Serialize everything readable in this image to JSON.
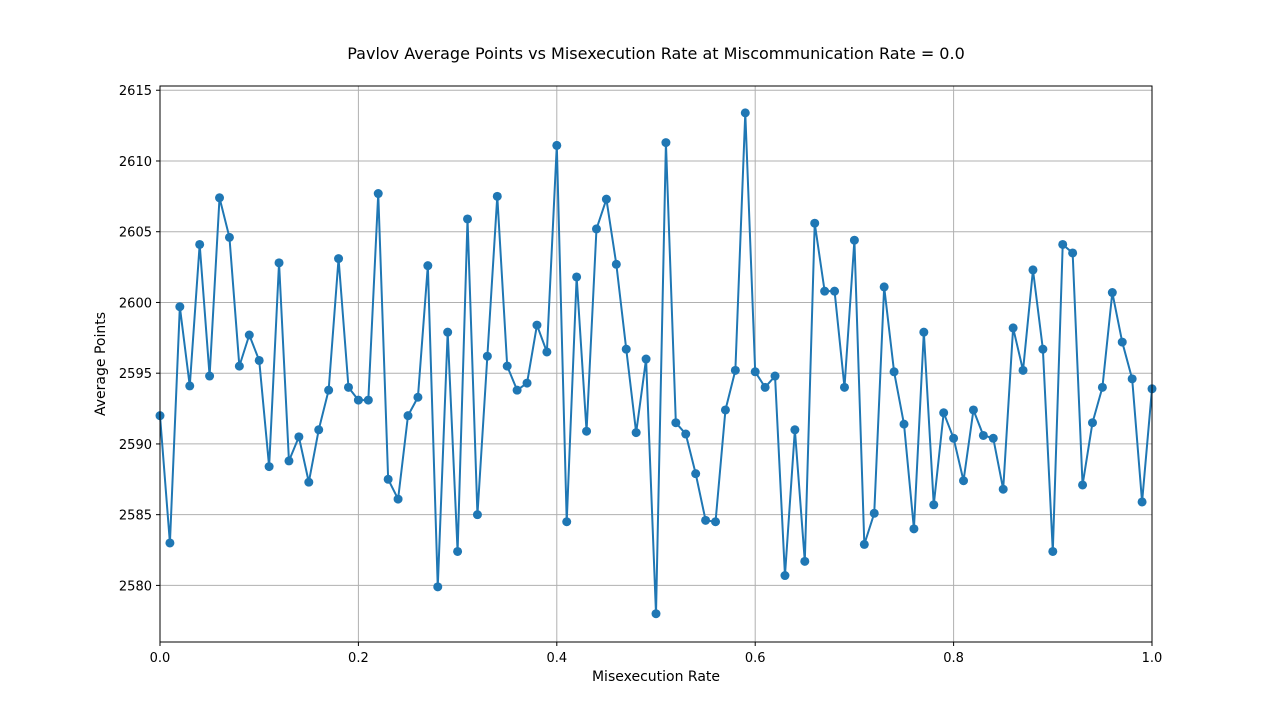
{
  "colors": {
    "series": "#1f77b4",
    "grid": "#b0b0b0"
  },
  "chart_data": {
    "type": "line",
    "title": "Pavlov Average Points vs Misexecution Rate at Miscommunication Rate = 0.0",
    "xlabel": "Misexecution Rate",
    "ylabel": "Average Points",
    "xlim": [
      0,
      1
    ],
    "ylim": [
      2576,
      2615.3
    ],
    "grid": true,
    "markers": true,
    "xticks": [
      0,
      0.2,
      0.4,
      0.6,
      0.8,
      1.0
    ],
    "xtick_labels": [
      "0.0",
      "0.2",
      "0.4",
      "0.6",
      "0.8",
      "1.0"
    ],
    "yticks": [
      2580,
      2585,
      2590,
      2595,
      2600,
      2605,
      2610,
      2615
    ],
    "ytick_labels": [
      "2580",
      "2585",
      "2590",
      "2595",
      "2600",
      "2605",
      "2610",
      "2615"
    ],
    "series": [
      {
        "x": [
          0.0,
          0.01,
          0.02,
          0.03,
          0.04,
          0.05,
          0.06,
          0.07,
          0.08,
          0.09,
          0.1,
          0.11,
          0.12,
          0.13,
          0.14,
          0.15,
          0.16,
          0.17,
          0.18,
          0.19,
          0.2,
          0.21,
          0.22,
          0.23,
          0.24,
          0.25,
          0.26,
          0.27,
          0.28,
          0.29,
          0.3,
          0.31,
          0.32,
          0.33,
          0.34,
          0.35,
          0.36,
          0.37,
          0.38,
          0.39,
          0.4,
          0.41,
          0.42,
          0.43,
          0.44,
          0.45,
          0.46,
          0.47,
          0.48,
          0.49,
          0.5,
          0.51,
          0.52,
          0.53,
          0.54,
          0.55,
          0.56,
          0.57,
          0.58,
          0.59,
          0.6,
          0.61,
          0.62,
          0.63,
          0.64,
          0.65,
          0.66,
          0.67,
          0.68,
          0.69,
          0.7,
          0.71,
          0.72,
          0.73,
          0.74,
          0.75,
          0.76,
          0.77,
          0.78,
          0.79,
          0.8,
          0.81,
          0.82,
          0.83,
          0.84,
          0.85,
          0.86,
          0.87,
          0.88,
          0.89,
          0.9,
          0.91,
          0.92,
          0.93,
          0.94,
          0.95,
          0.96,
          0.97,
          0.98,
          0.99,
          1.0
        ],
        "y": [
          2592.0,
          2583.0,
          2599.7,
          2594.1,
          2604.1,
          2594.8,
          2607.4,
          2604.6,
          2595.5,
          2597.7,
          2595.9,
          2588.4,
          2602.8,
          2588.8,
          2590.5,
          2587.3,
          2591.0,
          2593.8,
          2603.1,
          2594.0,
          2593.1,
          2593.1,
          2607.7,
          2587.5,
          2586.1,
          2592.0,
          2593.3,
          2602.6,
          2579.9,
          2597.9,
          2582.4,
          2605.9,
          2585.0,
          2596.2,
          2607.5,
          2595.5,
          2593.8,
          2594.3,
          2598.4,
          2596.5,
          2611.1,
          2584.5,
          2601.8,
          2590.9,
          2605.2,
          2607.3,
          2602.7,
          2596.7,
          2590.8,
          2596.0,
          2578.0,
          2611.3,
          2591.5,
          2590.7,
          2587.9,
          2584.6,
          2584.5,
          2592.4,
          2595.2,
          2613.4,
          2595.1,
          2594.0,
          2594.8,
          2580.7,
          2591.0,
          2581.7,
          2605.6,
          2600.8,
          2600.8,
          2594.0,
          2604.4,
          2582.9,
          2585.1,
          2601.1,
          2595.1,
          2591.4,
          2584.0,
          2597.9,
          2585.7,
          2592.2,
          2590.4,
          2587.4,
          2592.4,
          2590.6,
          2590.4,
          2586.8,
          2598.2,
          2595.2,
          2602.3,
          2596.7,
          2582.4,
          2604.1,
          2603.5,
          2587.1,
          2591.5,
          2594.0,
          2600.7,
          2597.2,
          2594.6,
          2585.9,
          2593.9
        ]
      }
    ]
  }
}
